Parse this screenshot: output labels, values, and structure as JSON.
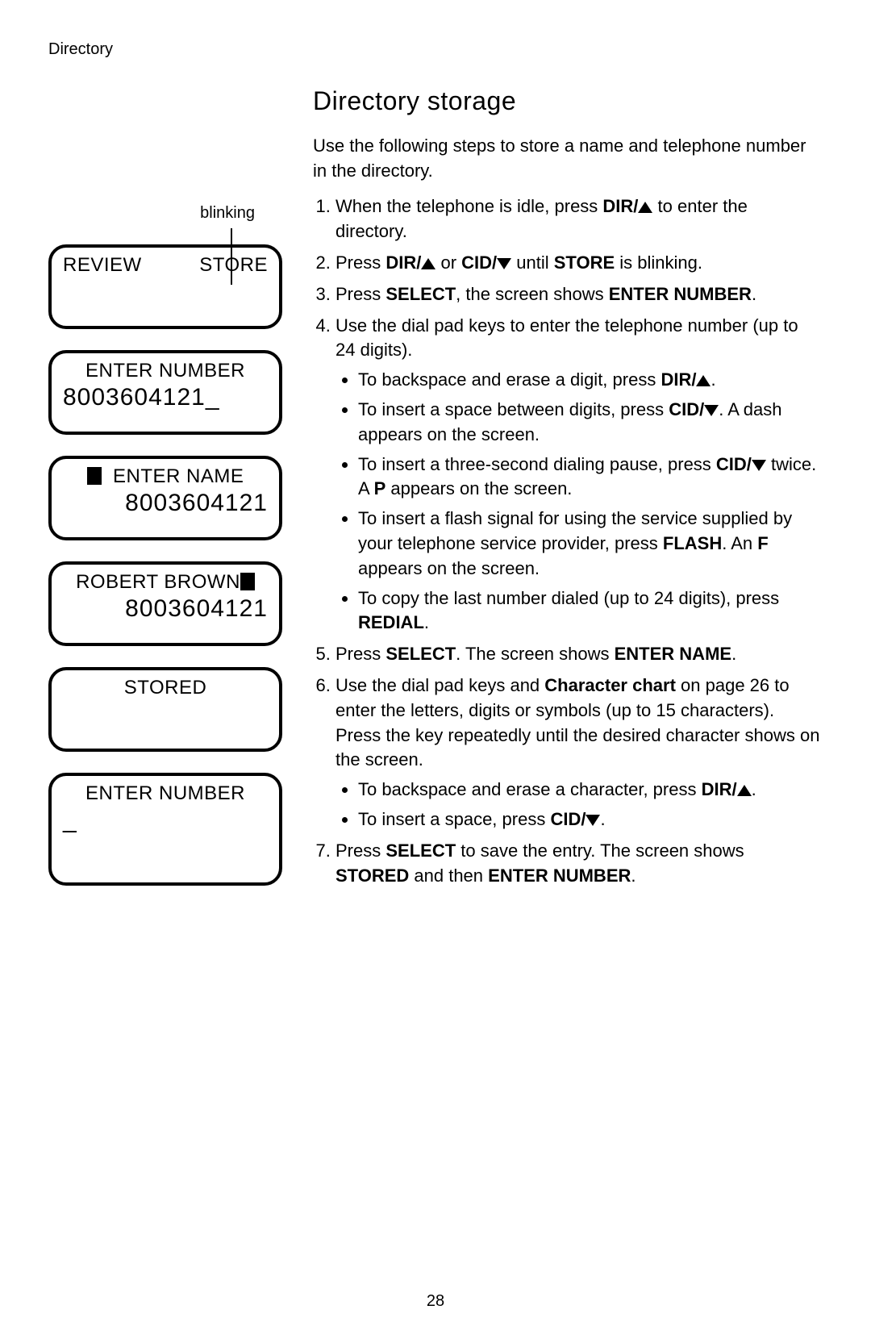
{
  "header": {
    "section": "Directory"
  },
  "title": "Directory storage",
  "blinking_label": "blinking",
  "screens": {
    "s1": {
      "left": "REVIEW",
      "right": "STORE"
    },
    "s2": {
      "label": "ENTER NUMBER",
      "value": "8003604121_"
    },
    "s3": {
      "label": "ENTER NAME",
      "value": "8003604121"
    },
    "s4": {
      "label": "ROBERT BROWN",
      "value": "8003604121"
    },
    "s5": {
      "label": "STORED"
    },
    "s6": {
      "label": "ENTER NUMBER",
      "value": "_"
    }
  },
  "intro": "Use the following steps to store a name and telephone number in the directory.",
  "steps": {
    "s1a": "When the telephone is idle, press ",
    "s1b": "DIR/",
    "s1c": " to enter the directory.",
    "s2a": "Press ",
    "s2b": "DIR/",
    "s2c": " or ",
    "s2d": "CID/",
    "s2e": " until ",
    "s2f": "STORE",
    "s2g": " is blinking.",
    "s3a": "Press ",
    "s3b": "SELECT",
    "s3c": ", the screen shows ",
    "s3d": "ENTER NUMBER",
    "s3e": ".",
    "s4a": "Use the dial pad keys to enter the telephone number (up to 24 digits).",
    "s4_b1a": "To backspace and erase a digit, press ",
    "s4_b1b": "DIR/",
    "s4_b1c": ".",
    "s4_b2a": "To insert a space between digits, press ",
    "s4_b2b": "CID/",
    "s4_b2c": ". A dash appears on the screen.",
    "s4_b3a": "To insert a three-second dialing pause, press ",
    "s4_b3b": "CID/",
    "s4_b3c": " twice. A ",
    "s4_b3d": "P",
    "s4_b3e": " appears on the screen.",
    "s4_b4a": "To insert a flash signal for using the service supplied by your telephone service provider, press ",
    "s4_b4b": "FLASH",
    "s4_b4c": ". An ",
    "s4_b4d": "F",
    "s4_b4e": " appears on the screen.",
    "s4_b5a": "To copy the last number dialed (up to 24 digits), press ",
    "s4_b5b": "REDIAL",
    "s4_b5c": ".",
    "s5a": "Press ",
    "s5b": "SELECT",
    "s5c": ". The screen shows ",
    "s5d": "ENTER NAME",
    "s5e": ".",
    "s6a": "Use the dial pad keys and ",
    "s6b": "Character chart",
    "s6c": " on page 26 to enter the letters, digits or symbols (up to 15 characters). Press the key repeatedly until the desired character shows on the screen.",
    "s6_b1a": "To backspace and erase a character, press ",
    "s6_b1b": "DIR/",
    "s6_b1c": ".",
    "s6_b2a": "To insert a space, press ",
    "s6_b2b": "CID/",
    "s6_b2c": ".",
    "s7a": "Press ",
    "s7b": "SELECT",
    "s7c": " to save the entry. The screen shows ",
    "s7d": "STORED",
    "s7e": " and then ",
    "s7f": "ENTER NUMBER",
    "s7g": "."
  },
  "page_number": "28"
}
